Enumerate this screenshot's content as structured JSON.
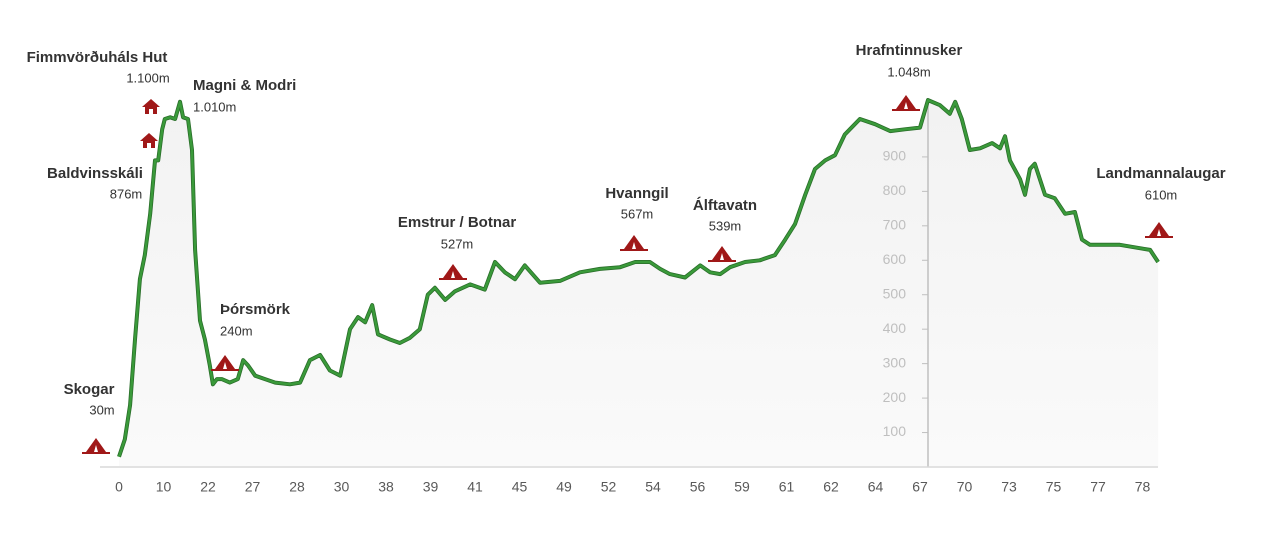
{
  "chart_data": {
    "type": "line",
    "categories": [
      "0",
      "10",
      "22",
      "27",
      "28",
      "30",
      "38",
      "39",
      "41",
      "45",
      "49",
      "52",
      "54",
      "56",
      "59",
      "61",
      "62",
      "64",
      "67",
      "70",
      "73",
      "75",
      "77",
      "78"
    ],
    "series": [
      {
        "color": "#3a9a3a",
        "x": [
          0,
          0.13,
          0.25,
          0.36,
          0.47,
          0.58,
          0.7,
          0.81,
          0.88,
          0.97,
          1.03,
          1.15,
          1.26,
          1.37,
          1.44,
          1.55,
          1.64,
          1.71,
          1.82,
          1.93,
          2.04,
          2.11,
          2.2,
          2.31,
          2.49,
          2.67,
          2.79,
          2.9,
          3.06,
          3.28,
          3.51,
          3.84,
          4.07,
          4.29,
          4.52,
          4.74,
          4.97,
          5.19,
          5.37,
          5.53,
          5.69,
          5.82,
          6.09,
          6.31,
          6.54,
          6.76,
          6.94,
          7.1,
          7.33,
          7.55,
          7.89,
          8.22,
          8.45,
          8.67,
          8.9,
          9.12,
          9.46,
          9.91,
          10.36,
          10.81,
          11.26,
          11.6,
          11.93,
          12.16,
          12.38,
          12.72,
          13.06,
          13.28,
          13.51,
          13.73,
          14.07,
          14.4,
          14.74,
          14.97,
          15.19,
          15.42,
          15.64,
          15.87,
          16.09,
          16.31,
          16.65,
          16.99,
          17.33,
          17.66,
          18.0,
          18.18,
          18.45,
          18.67,
          18.79,
          18.94,
          19.12,
          19.35,
          19.62,
          19.8,
          19.91,
          20.02,
          20.25,
          20.36,
          20.47,
          20.58,
          20.81,
          21.03,
          21.26,
          21.48,
          21.64,
          21.82,
          22.04,
          22.49,
          22.94,
          23.17,
          23.35
        ],
        "values": [
          30,
          80,
          180,
          370,
          545,
          615,
          735,
          890,
          890,
          980,
          1010,
          1015,
          1010,
          1060,
          1015,
          1010,
          920,
          630,
          425,
          370,
          295,
          240,
          255,
          255,
          245,
          255,
          310,
          295,
          265,
          255,
          245,
          240,
          245,
          310,
          325,
          280,
          265,
          400,
          435,
          420,
          470,
          385,
          370,
          360,
          375,
          400,
          500,
          520,
          485,
          510,
          530,
          515,
          595,
          565,
          545,
          585,
          535,
          540,
          565,
          575,
          580,
          595,
          595,
          575,
          560,
          550,
          585,
          565,
          560,
          580,
          595,
          600,
          615,
          660,
          705,
          790,
          865,
          890,
          905,
          965,
          1010,
          995,
          975,
          980,
          985,
          1065,
          1050,
          1025,
          1060,
          1010,
          920,
          925,
          940,
          925,
          960,
          890,
          835,
          790,
          865,
          880,
          790,
          780,
          735,
          740,
          660,
          645,
          645,
          645,
          635,
          630,
          595
        ]
      }
    ],
    "ylim": [
      0,
      1100
    ],
    "yticks": [
      100,
      200,
      300,
      400,
      500,
      600,
      700,
      800,
      900
    ],
    "annotations": [
      {
        "name": "Fimmvörðuháls Hut",
        "elevation": "1.100m",
        "icon": "hut"
      },
      {
        "name": "Magni & Modri",
        "elevation": "1.010m"
      },
      {
        "name": "Baldvinsskáli",
        "elevation": "876m",
        "icon": "hut"
      },
      {
        "name": "Skogar",
        "elevation": "30m",
        "icon": "tent"
      },
      {
        "name": "Þórsmörk",
        "elevation": "240m",
        "icon": "tent"
      },
      {
        "name": "Emstrur / Botnar",
        "elevation": "527m",
        "icon": "tent"
      },
      {
        "name": "Hvanngil",
        "elevation": "567m",
        "icon": "tent"
      },
      {
        "name": "Álftavatn",
        "elevation": "539m",
        "icon": "tent"
      },
      {
        "name": "Hrafntinnusker",
        "elevation": "1.048m",
        "icon": "tent"
      },
      {
        "name": "Landmannalaugar",
        "elevation": "610m",
        "icon": "tent"
      }
    ]
  }
}
